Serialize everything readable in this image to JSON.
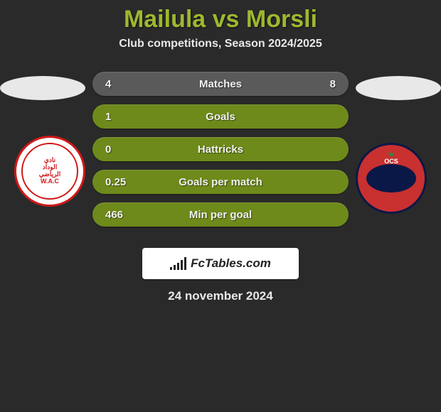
{
  "title": "Mailula vs Morsli",
  "subtitle": "Club competitions, Season 2024/2025",
  "rows": [
    {
      "left": "4",
      "label": "Matches",
      "right": "8",
      "style": "gray"
    },
    {
      "left": "1",
      "label": "Goals",
      "right": "",
      "style": "green"
    },
    {
      "left": "0",
      "label": "Hattricks",
      "right": "",
      "style": "green"
    },
    {
      "left": "0.25",
      "label": "Goals per match",
      "right": "",
      "style": "green"
    },
    {
      "left": "466",
      "label": "Min per goal",
      "right": "",
      "style": "green"
    }
  ],
  "brand": "FcTables.com",
  "date": "24 november 2024",
  "colors": {
    "title": "#9db82f",
    "bg": "#2a2a2a",
    "row_gray": "#5a5a5a",
    "row_green": "#6e8a1a",
    "ellipse": "#e8e8e8",
    "text": "#e8e8e8"
  },
  "badges": {
    "left": {
      "text": "نادي\nالوداد\nالرياضي\nW.A.C",
      "bg": "#ffffff",
      "border": "#d01818"
    },
    "right": {
      "text": "OCS",
      "bg": "#c93030",
      "border": "#0a1847"
    }
  },
  "brand_bars": [
    4,
    7,
    10,
    14,
    18
  ]
}
